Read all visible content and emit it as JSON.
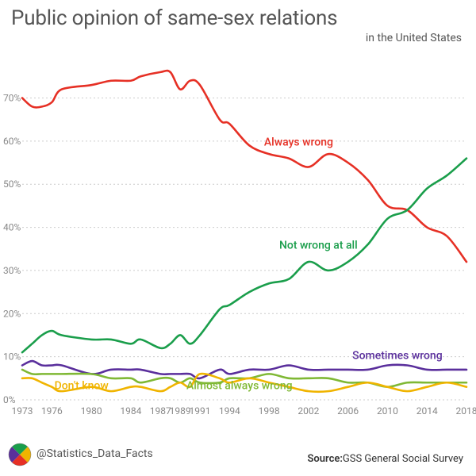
{
  "title": "Public opinion of same-sex relations",
  "subtitle": "in the United States",
  "handle": "@Statistics_Data_Facts",
  "source_label": "Source:",
  "source_text": "GSS General Social Survey",
  "chart": {
    "type": "line",
    "background_color": "#ffffff",
    "grid_color": "#cccccc",
    "axis_label_color": "#888888",
    "title_fontsize": 26,
    "title_color": "#555555",
    "subtitle_fontsize": 14,
    "x": {
      "min": 1973,
      "max": 2018,
      "ticks": [
        1973,
        1976,
        1980,
        1984,
        1987,
        1989,
        1991,
        1994,
        1998,
        2002,
        2006,
        2010,
        2014,
        2018
      ]
    },
    "y": {
      "min": 0,
      "max": 78,
      "ticks": [
        0,
        10,
        20,
        30,
        40,
        50,
        60,
        70
      ],
      "tick_suffix": "%"
    },
    "line_width": 2.6,
    "series": [
      {
        "name": "Always wrong",
        "color": "#e63025",
        "label": {
          "text": "Always wrong",
          "x": 2001,
          "y": 59
        },
        "points": [
          [
            1973,
            70
          ],
          [
            1974,
            68
          ],
          [
            1975,
            68
          ],
          [
            1976,
            69
          ],
          [
            1977,
            72
          ],
          [
            1980,
            73
          ],
          [
            1982,
            74
          ],
          [
            1984,
            74
          ],
          [
            1985,
            75
          ],
          [
            1987,
            76
          ],
          [
            1988,
            76
          ],
          [
            1989,
            72
          ],
          [
            1990,
            74
          ],
          [
            1991,
            73
          ],
          [
            1993,
            65
          ],
          [
            1994,
            64
          ],
          [
            1996,
            59
          ],
          [
            1998,
            57
          ],
          [
            2000,
            56
          ],
          [
            2002,
            54
          ],
          [
            2004,
            57
          ],
          [
            2006,
            55
          ],
          [
            2008,
            51
          ],
          [
            2010,
            45
          ],
          [
            2012,
            44
          ],
          [
            2014,
            40
          ],
          [
            2016,
            38
          ],
          [
            2018,
            32
          ]
        ]
      },
      {
        "name": "Not wrong at all",
        "color": "#1a9e4b",
        "label": {
          "text": "Not wrong at all",
          "x": 2003,
          "y": 35
        },
        "points": [
          [
            1973,
            11
          ],
          [
            1974,
            13
          ],
          [
            1975,
            15
          ],
          [
            1976,
            16
          ],
          [
            1977,
            15
          ],
          [
            1980,
            14
          ],
          [
            1982,
            14
          ],
          [
            1984,
            13
          ],
          [
            1985,
            14
          ],
          [
            1987,
            12
          ],
          [
            1988,
            13
          ],
          [
            1989,
            15
          ],
          [
            1990,
            13
          ],
          [
            1991,
            15
          ],
          [
            1993,
            21
          ],
          [
            1994,
            22
          ],
          [
            1996,
            25
          ],
          [
            1998,
            27
          ],
          [
            2000,
            28
          ],
          [
            2002,
            32
          ],
          [
            2004,
            30
          ],
          [
            2006,
            32
          ],
          [
            2008,
            36
          ],
          [
            2010,
            42
          ],
          [
            2012,
            44
          ],
          [
            2014,
            49
          ],
          [
            2016,
            52
          ],
          [
            2018,
            56
          ]
        ]
      },
      {
        "name": "Sometimes wrong",
        "color": "#5a2f9c",
        "label": {
          "text": "Sometimes wrong",
          "x": 2011,
          "y": 9.5
        },
        "points": [
          [
            1973,
            8
          ],
          [
            1974,
            9
          ],
          [
            1975,
            8
          ],
          [
            1976,
            8
          ],
          [
            1977,
            8
          ],
          [
            1980,
            6
          ],
          [
            1982,
            7
          ],
          [
            1984,
            7
          ],
          [
            1985,
            7
          ],
          [
            1987,
            6
          ],
          [
            1988,
            6
          ],
          [
            1989,
            6
          ],
          [
            1990,
            6
          ],
          [
            1991,
            5
          ],
          [
            1993,
            7
          ],
          [
            1994,
            6
          ],
          [
            1996,
            7
          ],
          [
            1998,
            7
          ],
          [
            2000,
            8
          ],
          [
            2002,
            7
          ],
          [
            2004,
            7
          ],
          [
            2006,
            7
          ],
          [
            2008,
            7
          ],
          [
            2010,
            8
          ],
          [
            2012,
            8
          ],
          [
            2014,
            7
          ],
          [
            2016,
            7
          ],
          [
            2018,
            7
          ]
        ]
      },
      {
        "name": "Almost always wrong",
        "color": "#7fb834",
        "label": {
          "text": "Almost always wrong",
          "x": 1995,
          "y": 2.5
        },
        "points": [
          [
            1973,
            7
          ],
          [
            1974,
            6
          ],
          [
            1975,
            6
          ],
          [
            1976,
            6
          ],
          [
            1977,
            6
          ],
          [
            1980,
            6
          ],
          [
            1982,
            5
          ],
          [
            1984,
            5
          ],
          [
            1985,
            4
          ],
          [
            1987,
            5
          ],
          [
            1988,
            5
          ],
          [
            1989,
            4
          ],
          [
            1990,
            5
          ],
          [
            1991,
            4
          ],
          [
            1993,
            4
          ],
          [
            1994,
            5
          ],
          [
            1996,
            5
          ],
          [
            1998,
            6
          ],
          [
            2000,
            5
          ],
          [
            2002,
            5
          ],
          [
            2004,
            5
          ],
          [
            2006,
            4
          ],
          [
            2008,
            4
          ],
          [
            2010,
            3
          ],
          [
            2012,
            4
          ],
          [
            2014,
            4
          ],
          [
            2016,
            4
          ],
          [
            2018,
            4
          ]
        ]
      },
      {
        "name": "Don't know",
        "color": "#f0b400",
        "label": {
          "text": "Don't know",
          "x": 1979,
          "y": 2.5
        },
        "points": [
          [
            1973,
            5
          ],
          [
            1974,
            5
          ],
          [
            1975,
            4
          ],
          [
            1976,
            3
          ],
          [
            1977,
            2
          ],
          [
            1980,
            3
          ],
          [
            1982,
            2
          ],
          [
            1984,
            3
          ],
          [
            1985,
            3
          ],
          [
            1987,
            2
          ],
          [
            1988,
            3
          ],
          [
            1989,
            4
          ],
          [
            1990,
            3
          ],
          [
            1991,
            6
          ],
          [
            1993,
            5
          ],
          [
            1994,
            4
          ],
          [
            1996,
            5
          ],
          [
            1998,
            4
          ],
          [
            2000,
            3
          ],
          [
            2002,
            2
          ],
          [
            2004,
            2
          ],
          [
            2006,
            3
          ],
          [
            2008,
            4
          ],
          [
            2010,
            3
          ],
          [
            2012,
            2
          ],
          [
            2014,
            3
          ],
          [
            2016,
            4
          ],
          [
            2018,
            3
          ]
        ]
      }
    ]
  },
  "logo_colors": [
    "#f0b400",
    "#e63025",
    "#5a2f9c",
    "#1a9e4b"
  ]
}
